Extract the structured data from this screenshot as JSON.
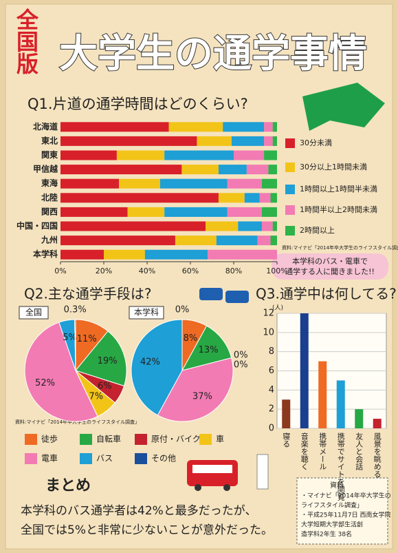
{
  "title": {
    "badge": "全国版",
    "main": "大学生の通学事情"
  },
  "chart_data": [
    {
      "type": "hbar",
      "stacked": true,
      "title": "Q1.片道の通学時間はどのくらい?",
      "categories": [
        "北海道",
        "東北",
        "関東",
        "甲信越",
        "東海",
        "北陸",
        "関西",
        "中国・四国",
        "九州",
        "本学科"
      ],
      "series": [
        {
          "name": "30分未満",
          "color": "#d8202a",
          "values": [
            50,
            63,
            26,
            56,
            27,
            73,
            31,
            67,
            53,
            20
          ]
        },
        {
          "name": "30分以上1時間未満",
          "color": "#f2c418",
          "values": [
            25,
            16,
            22,
            17,
            19,
            12,
            17,
            15,
            19,
            19
          ]
        },
        {
          "name": "1時間以上1時間半未満",
          "color": "#1e9fd6",
          "values": [
            19,
            15,
            32,
            13,
            31,
            7,
            29,
            11,
            19,
            29
          ]
        },
        {
          "name": "1時間半以上2時間未満",
          "color": "#f27bb3",
          "values": [
            4,
            4,
            14,
            10,
            16,
            5,
            16,
            5,
            6,
            32
          ]
        },
        {
          "name": "2時間以上",
          "color": "#2db34a",
          "values": [
            2,
            2,
            6,
            4,
            7,
            3,
            7,
            2,
            3,
            0
          ]
        }
      ],
      "xlim": [
        0,
        100
      ],
      "xticks": [
        {
          "value": 0,
          "label": "0%"
        },
        {
          "value": 20,
          "label": "20%"
        },
        {
          "value": 40,
          "label": "40%"
        },
        {
          "value": 60,
          "label": "60%"
        },
        {
          "value": 80,
          "label": "80%"
        },
        {
          "value": 100,
          "label": "100%"
        }
      ],
      "legend": "right",
      "note": "資料:マイナビ「2014年卒大学生のライフスタイル調査」",
      "callout": [
        "本学科のバス・電車で",
        "通学する人に聞きました!!"
      ]
    },
    {
      "type": "pie",
      "title": "Q2.主な通学手段は?",
      "label": "全国",
      "categories": [
        "徒歩",
        "自転車",
        "原付・バイク",
        "車",
        "電車",
        "バス",
        "その他"
      ],
      "colors": [
        "#ef6a22",
        "#27a844",
        "#c4222e",
        "#f2c418",
        "#f27bb3",
        "#1e9fd6",
        "#1a4f9c"
      ],
      "values": [
        11,
        19,
        6,
        7,
        52,
        5,
        0.3
      ],
      "value_labels": [
        "11%",
        "19%",
        "6%",
        "7%",
        "52%",
        "5%",
        "0.3%"
      ],
      "note": "資料:マイナビ「2014年卒大学生のライフスタイル調査」"
    },
    {
      "type": "pie",
      "label": "本学科",
      "categories": [
        "徒歩",
        "自転車",
        "原付・バイク",
        "車",
        "電車",
        "バス",
        "その他"
      ],
      "colors": [
        "#ef6a22",
        "#27a844",
        "#c4222e",
        "#f2c418",
        "#f27bb3",
        "#1e9fd6",
        "#1a4f9c"
      ],
      "values": [
        8,
        13,
        0,
        0,
        37,
        42,
        0
      ],
      "value_labels": [
        "8%",
        "13%",
        "0%",
        "0%",
        "37%",
        "42%",
        "0%"
      ]
    },
    {
      "type": "bar",
      "title": "Q3.通学中は何してる?",
      "y_label": "(人)",
      "categories": [
        "寝る",
        "音楽を聴く",
        "携帯メール",
        "携帯でサイトを閲覧",
        "友人と会話",
        "風景を眺める"
      ],
      "values": [
        3,
        12,
        7,
        5,
        2,
        1
      ],
      "colors": [
        "#8b3a1e",
        "#1a3f8f",
        "#ef6a22",
        "#1e9fd6",
        "#27a844",
        "#c4222e"
      ],
      "ylim": [
        0,
        12
      ],
      "yticks": [
        0,
        2,
        4,
        6,
        8,
        10,
        12
      ],
      "grid": true
    }
  ],
  "summary": {
    "heading": "まとめ",
    "lines": [
      "本学科のバス通学者は42%と最多だったが、",
      "全国では5%と非常に少ないことが意外だった。"
    ]
  },
  "source": {
    "heading": "資料",
    "lines": [
      "・マイナビ「2014年卒大学生の",
      "ライフスタイル調査」",
      "・平成25年11月7日 西南女学院",
      "大学短期大学部生活創",
      "造学科2年生 38名"
    ]
  }
}
